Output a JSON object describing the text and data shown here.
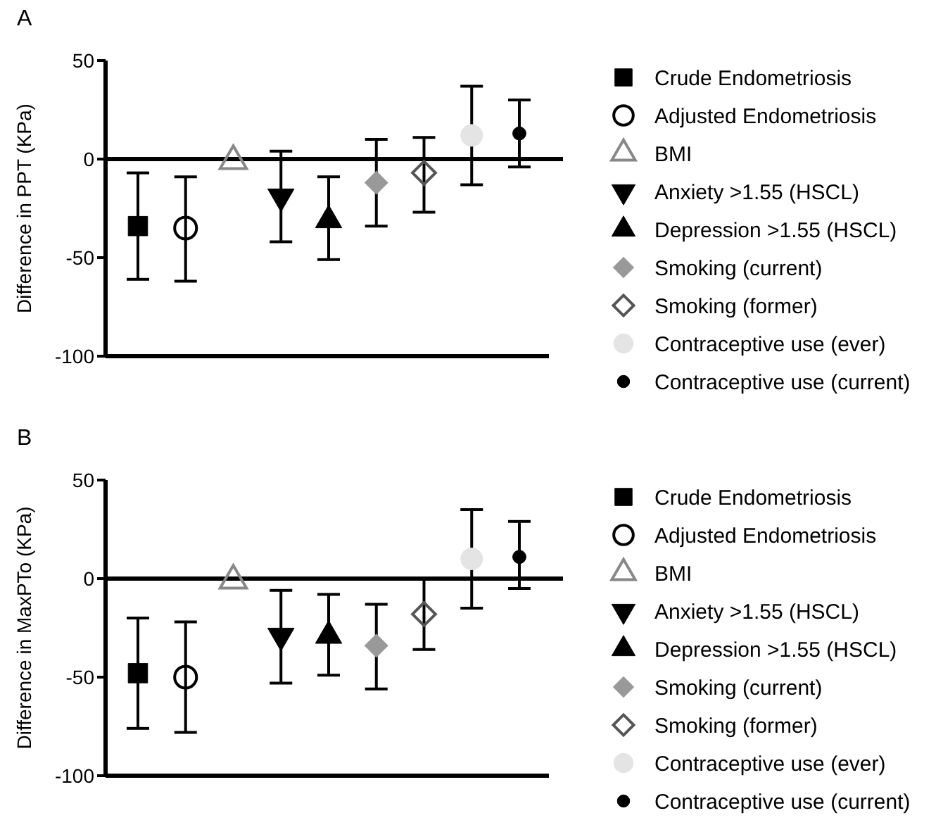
{
  "chart_data": [
    {
      "type": "scatter",
      "title": "A",
      "ylabel": "Difference in PPT (KPa)",
      "categories": [
        null,
        null,
        null,
        null,
        null,
        null,
        null,
        null,
        null
      ],
      "ylim": [
        -100,
        50
      ],
      "yticks": [
        -100,
        -50,
        0,
        50
      ],
      "legend": "right",
      "series": [
        {
          "name": "Crude Endometriosis",
          "color": "#000000",
          "marker": "square",
          "values": [
            -34,
            null,
            null,
            null,
            null,
            null,
            null,
            null,
            null
          ],
          "errors": [
            [
              -61,
              -7
            ],
            null,
            null,
            null,
            null,
            null,
            null,
            null,
            null
          ]
        },
        {
          "name": "Adjusted Endometriosis",
          "color": "#000000",
          "marker": "circle-open",
          "values": [
            null,
            -35,
            null,
            null,
            null,
            null,
            null,
            null,
            null
          ],
          "errors": [
            null,
            [
              -62,
              -9
            ],
            null,
            null,
            null,
            null,
            null,
            null,
            null
          ]
        },
        {
          "name": "BMI",
          "color": "#888888",
          "marker": "triangle-open",
          "values": [
            null,
            null,
            -1,
            null,
            null,
            null,
            null,
            null,
            null
          ]
        },
        {
          "name": "Anxiety >1.55 (HSCL)",
          "color": "#000000",
          "marker": "triangle-down",
          "values": [
            null,
            null,
            null,
            -19,
            null,
            null,
            null,
            null,
            null
          ],
          "errors": [
            null,
            null,
            null,
            [
              -42,
              4
            ],
            null,
            null,
            null,
            null,
            null
          ]
        },
        {
          "name": "Depression >1.55 (HSCL)",
          "color": "#000000",
          "marker": "triangle",
          "values": [
            null,
            null,
            null,
            null,
            -31,
            null,
            null,
            null,
            null
          ],
          "errors": [
            null,
            null,
            null,
            null,
            [
              -51,
              -9
            ],
            null,
            null,
            null,
            null
          ]
        },
        {
          "name": "Smoking (current)",
          "color": "#999999",
          "marker": "diamond",
          "values": [
            null,
            null,
            null,
            null,
            null,
            -12,
            null,
            null,
            null
          ],
          "errors": [
            null,
            null,
            null,
            null,
            null,
            [
              -34,
              10
            ],
            null,
            null,
            null
          ]
        },
        {
          "name": "Smoking (former)",
          "color": "#555555",
          "marker": "diamond-open",
          "values": [
            null,
            null,
            null,
            null,
            null,
            null,
            -7,
            null,
            null
          ],
          "errors": [
            null,
            null,
            null,
            null,
            null,
            null,
            [
              -27,
              11
            ],
            null,
            null
          ]
        },
        {
          "name": "Contraceptive use (ever)",
          "color": "#e4e4e4",
          "marker": "circle",
          "values": [
            null,
            null,
            null,
            null,
            null,
            null,
            null,
            12,
            null
          ],
          "errors": [
            null,
            null,
            null,
            null,
            null,
            null,
            null,
            [
              -13,
              37
            ],
            null
          ]
        },
        {
          "name": "Contraceptive use (current)",
          "color": "#000000",
          "marker": "circle",
          "values": [
            null,
            null,
            null,
            null,
            null,
            null,
            null,
            null,
            13
          ],
          "errors": [
            null,
            null,
            null,
            null,
            null,
            null,
            null,
            null,
            [
              -4,
              30
            ]
          ]
        }
      ]
    },
    {
      "type": "scatter",
      "title": "B",
      "ylabel": "Difference in MaxPTo  (KPa)",
      "categories": [
        null,
        null,
        null,
        null,
        null,
        null,
        null,
        null,
        null
      ],
      "ylim": [
        -100,
        50
      ],
      "yticks": [
        -100,
        -50,
        0,
        50
      ],
      "legend": "right",
      "series": [
        {
          "name": "Crude Endometriosis",
          "color": "#000000",
          "marker": "square",
          "values": [
            -48,
            null,
            null,
            null,
            null,
            null,
            null,
            null,
            null
          ],
          "errors": [
            [
              -76,
              -20
            ],
            null,
            null,
            null,
            null,
            null,
            null,
            null,
            null
          ]
        },
        {
          "name": "Adjusted Endometriosis",
          "color": "#000000",
          "marker": "circle-open",
          "values": [
            null,
            -50,
            null,
            null,
            null,
            null,
            null,
            null,
            null
          ],
          "errors": [
            null,
            [
              -78,
              -22
            ],
            null,
            null,
            null,
            null,
            null,
            null,
            null
          ]
        },
        {
          "name": "BMI",
          "color": "#888888",
          "marker": "triangle-open",
          "values": [
            null,
            null,
            -1,
            null,
            null,
            null,
            null,
            null,
            null
          ]
        },
        {
          "name": "Anxiety >1.55 (HSCL)",
          "color": "#000000",
          "marker": "triangle-down",
          "values": [
            null,
            null,
            null,
            -29,
            null,
            null,
            null,
            null,
            null
          ],
          "errors": [
            null,
            null,
            null,
            [
              -53,
              -6
            ],
            null,
            null,
            null,
            null,
            null
          ]
        },
        {
          "name": "Depression >1.55 (HSCL)",
          "color": "#000000",
          "marker": "triangle",
          "values": [
            null,
            null,
            null,
            null,
            -29,
            null,
            null,
            null,
            null
          ],
          "errors": [
            null,
            null,
            null,
            null,
            [
              -49,
              -8
            ],
            null,
            null,
            null,
            null
          ]
        },
        {
          "name": "Smoking (current)",
          "color": "#999999",
          "marker": "diamond",
          "values": [
            null,
            null,
            null,
            null,
            null,
            -34,
            null,
            null,
            null
          ],
          "errors": [
            null,
            null,
            null,
            null,
            null,
            [
              -56,
              -13
            ],
            null,
            null,
            null
          ]
        },
        {
          "name": "Smoking (former)",
          "color": "#555555",
          "marker": "diamond-open",
          "values": [
            null,
            null,
            null,
            null,
            null,
            null,
            -18,
            null,
            null
          ],
          "errors": [
            null,
            null,
            null,
            null,
            null,
            null,
            [
              -36,
              0
            ],
            null,
            null
          ]
        },
        {
          "name": "Contraceptive use (ever)",
          "color": "#e4e4e4",
          "marker": "circle",
          "values": [
            null,
            null,
            null,
            null,
            null,
            null,
            null,
            10,
            null
          ],
          "errors": [
            null,
            null,
            null,
            null,
            null,
            null,
            null,
            [
              -15,
              35
            ],
            null
          ]
        },
        {
          "name": "Contraceptive use (current)",
          "color": "#000000",
          "marker": "circle",
          "values": [
            null,
            null,
            null,
            null,
            null,
            null,
            null,
            null,
            11
          ],
          "errors": [
            null,
            null,
            null,
            null,
            null,
            null,
            null,
            null,
            [
              -5,
              29
            ]
          ]
        }
      ]
    }
  ]
}
